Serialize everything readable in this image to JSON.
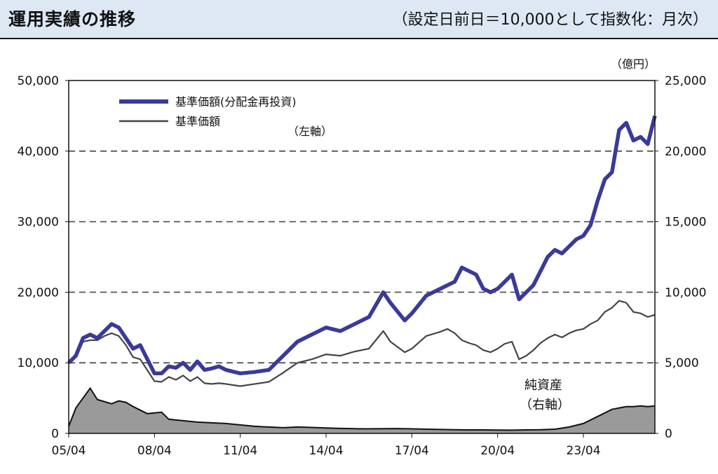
{
  "header": {
    "title": "運用実績の推移",
    "subtitle": "（設定日前日＝10,000として指数化：月次）"
  },
  "chart_data": {
    "type": "line",
    "x_tick_labels": [
      "05/04",
      "08/04",
      "11/04",
      "14/04",
      "17/04",
      "20/04",
      "23/04"
    ],
    "x_range": [
      "05/04",
      "25/10"
    ],
    "left_axis": {
      "ylim": [
        0,
        50000
      ],
      "tick_labels": [
        "0",
        "10,000",
        "20,000",
        "30,000",
        "40,000",
        "50,000"
      ],
      "annotation": "（左軸）"
    },
    "right_axis": {
      "ylim": [
        0,
        25000
      ],
      "tick_labels": [
        "0",
        "5,000",
        "10,000",
        "15,000",
        "20,000",
        "25,000"
      ],
      "unit": "（億円）",
      "annotation": "（右軸）"
    },
    "grid": "dashed horizontal",
    "legend_position": "top-left",
    "colors": {
      "reinvest": "#3a3a9a",
      "nav": "#444444",
      "assets_fill": "#9a9a9a",
      "assets_line": "#111111"
    },
    "x_years": [
      2005.25,
      2005.5,
      2005.75,
      2006,
      2006.25,
      2006.5,
      2006.75,
      2007,
      2007.25,
      2007.5,
      2007.75,
      2008,
      2008.25,
      2008.5,
      2008.75,
      2009,
      2009.25,
      2009.5,
      2009.75,
      2010,
      2010.25,
      2010.5,
      2010.75,
      2011,
      2011.25,
      2011.5,
      2011.75,
      2012,
      2012.25,
      2012.5,
      2012.75,
      2013,
      2013.25,
      2013.5,
      2013.75,
      2014,
      2014.25,
      2014.5,
      2014.75,
      2015,
      2015.25,
      2015.5,
      2015.75,
      2016,
      2016.25,
      2016.5,
      2016.75,
      2017,
      2017.25,
      2017.5,
      2017.75,
      2018,
      2018.25,
      2018.5,
      2018.75,
      2019,
      2019.25,
      2019.5,
      2019.75,
      2020,
      2020.25,
      2020.5,
      2020.75,
      2021,
      2021.25,
      2021.5,
      2021.75,
      2022,
      2022.25,
      2022.5,
      2022.75,
      2023,
      2023.25,
      2023.5,
      2023.75,
      2024,
      2024.25,
      2024.5,
      2024.75,
      2025,
      2025.25,
      2025.5,
      2025.75
    ],
    "series": [
      {
        "name": "基準価額(分配金再投資)",
        "axis": "left",
        "values": [
          10000,
          11000,
          13500,
          14000,
          13500,
          14500,
          15500,
          15000,
          13500,
          12000,
          12500,
          8500,
          8500,
          9500,
          9300,
          10000,
          9000,
          10200,
          9000,
          9200,
          9500,
          9000,
          8500,
          8700,
          9000,
          11000,
          13000,
          14000,
          15000,
          14500,
          15500,
          16500,
          20000,
          18500,
          16000,
          17000,
          19500,
          20500,
          21000,
          21500,
          23500,
          23000,
          22500,
          20500,
          20000,
          20500,
          21500,
          22500,
          19000,
          20000,
          21000,
          23000,
          25000,
          26000,
          25500,
          26500,
          27500,
          28000,
          29500,
          33000,
          36000,
          37000,
          43000,
          44000,
          41500,
          42000,
          41000,
          45000
        ],
        "x_index": [
          0,
          1,
          2,
          3,
          4,
          5,
          6,
          7,
          8,
          9,
          10,
          12,
          13,
          14,
          15,
          16,
          17,
          18,
          19,
          20,
          21,
          22,
          24,
          26,
          28,
          30,
          32,
          34,
          36,
          38,
          40,
          42,
          44,
          45,
          47,
          48,
          50,
          52,
          53,
          54,
          55,
          56,
          57,
          58,
          59,
          60,
          61,
          62,
          63,
          64,
          65,
          66,
          67,
          68,
          69,
          70,
          71,
          72,
          73,
          74,
          75,
          76,
          77,
          78,
          79,
          80,
          81,
          82
        ]
      },
      {
        "name": "基準価額",
        "axis": "left",
        "values": [
          10000,
          10800,
          13000,
          13200,
          13200,
          13800,
          14200,
          13800,
          12500,
          10800,
          10500,
          7400,
          7300,
          8000,
          7600,
          8200,
          7400,
          8000,
          7100,
          7000,
          7100,
          7000,
          6700,
          7000,
          7300,
          8600,
          10000,
          10500,
          11200,
          11000,
          11600,
          12000,
          14500,
          13000,
          11500,
          12000,
          13800,
          14400,
          14800,
          14200,
          13200,
          12800,
          12500,
          11800,
          11500,
          12000,
          12700,
          13000,
          10500,
          11000,
          11800,
          12800,
          13500,
          14000,
          13600,
          14200,
          14600,
          14800,
          15500,
          16000,
          17200,
          17800,
          18800,
          18500,
          17200,
          17000,
          16500,
          16800
        ],
        "x_index": [
          0,
          1,
          2,
          3,
          4,
          5,
          6,
          7,
          8,
          9,
          10,
          12,
          13,
          14,
          15,
          16,
          17,
          18,
          19,
          20,
          21,
          22,
          24,
          26,
          28,
          30,
          32,
          34,
          36,
          38,
          40,
          42,
          44,
          45,
          47,
          48,
          50,
          52,
          53,
          54,
          55,
          56,
          57,
          58,
          59,
          60,
          61,
          62,
          63,
          64,
          65,
          66,
          67,
          68,
          69,
          70,
          71,
          72,
          73,
          74,
          75,
          76,
          77,
          78,
          79,
          80,
          81,
          82
        ]
      },
      {
        "name": "純資産",
        "axis": "right",
        "values": [
          500,
          1800,
          2500,
          3200,
          2400,
          2100,
          2300,
          2200,
          1900,
          1400,
          1500,
          1000,
          900,
          800,
          750,
          700,
          600,
          500,
          450,
          400,
          450,
          420,
          380,
          350,
          330,
          320,
          330,
          340,
          320,
          300,
          280,
          260,
          250,
          250,
          240,
          230,
          250,
          260,
          300,
          450,
          700,
          1200,
          1700,
          1900,
          1900,
          1950,
          1900,
          1950
        ],
        "x_index": [
          0,
          1,
          2,
          3,
          4,
          6,
          7,
          8,
          9,
          11,
          13,
          14,
          16,
          18,
          20,
          22,
          24,
          26,
          28,
          30,
          32,
          34,
          36,
          38,
          40,
          42,
          44,
          46,
          48,
          50,
          52,
          54,
          56,
          58,
          60,
          62,
          64,
          66,
          68,
          70,
          72,
          74,
          76,
          78,
          79,
          80,
          81,
          82
        ]
      }
    ],
    "legend": [
      "基準価額(分配金再投資)",
      "基準価額"
    ],
    "series_label_assets": "純資産"
  }
}
